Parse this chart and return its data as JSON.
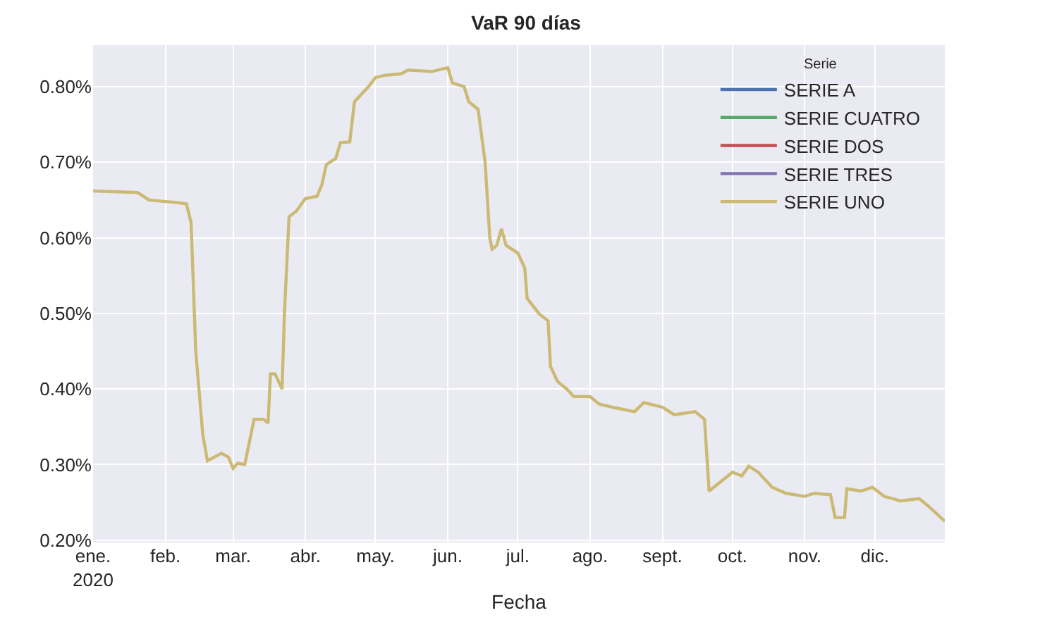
{
  "chart_data": {
    "type": "line",
    "title": "VaR 90 días",
    "xlabel": "Fecha",
    "legend_title": "Serie",
    "legend": "top right",
    "grid": true,
    "x": [
      "2020-01-01",
      "2020-01-20",
      "2020-01-25",
      "2020-02-01",
      "2020-02-05",
      "2020-02-10",
      "2020-02-12",
      "2020-02-14",
      "2020-02-17",
      "2020-02-19",
      "2020-02-25",
      "2020-02-28",
      "2020-03-01",
      "2020-03-03",
      "2020-03-06",
      "2020-03-08",
      "2020-03-10",
      "2020-03-14",
      "2020-03-16",
      "2020-03-17",
      "2020-03-19",
      "2020-03-22",
      "2020-03-23",
      "2020-03-25",
      "2020-03-28",
      "2020-04-01",
      "2020-04-06",
      "2020-04-08",
      "2020-04-10",
      "2020-04-14",
      "2020-04-16",
      "2020-04-20",
      "2020-04-22",
      "2020-04-25",
      "2020-04-28",
      "2020-05-01",
      "2020-05-05",
      "2020-05-12",
      "2020-05-15",
      "2020-05-25",
      "2020-06-01",
      "2020-06-03",
      "2020-06-08",
      "2020-06-10",
      "2020-06-14",
      "2020-06-17",
      "2020-06-19",
      "2020-06-20",
      "2020-06-22",
      "2020-06-24",
      "2020-06-26",
      "2020-07-01",
      "2020-07-04",
      "2020-07-05",
      "2020-07-10",
      "2020-07-14",
      "2020-07-15",
      "2020-07-18",
      "2020-07-22",
      "2020-07-25",
      "2020-08-01",
      "2020-08-05",
      "2020-08-12",
      "2020-08-20",
      "2020-08-24",
      "2020-09-01",
      "2020-09-06",
      "2020-09-15",
      "2020-09-19",
      "2020-09-21",
      "2020-09-25",
      "2020-10-01",
      "2020-10-05",
      "2020-10-08",
      "2020-10-12",
      "2020-10-18",
      "2020-10-24",
      "2020-11-01",
      "2020-11-05",
      "2020-11-12",
      "2020-11-14",
      "2020-11-18",
      "2020-11-19",
      "2020-11-25",
      "2020-11-30",
      "2020-12-05",
      "2020-12-12",
      "2020-12-20",
      "2020-12-24",
      "2020-12-31"
    ],
    "xlim": [
      "2020-01-01",
      "2020-12-31"
    ],
    "xticks": [
      {
        "value": "2020-01-01",
        "label": "ene.\n2020"
      },
      {
        "value": "2020-02-01",
        "label": "feb."
      },
      {
        "value": "2020-03-01",
        "label": "mar."
      },
      {
        "value": "2020-04-01",
        "label": "abr."
      },
      {
        "value": "2020-05-01",
        "label": "may."
      },
      {
        "value": "2020-06-01",
        "label": "jun."
      },
      {
        "value": "2020-07-01",
        "label": "jul."
      },
      {
        "value": "2020-08-01",
        "label": "ago."
      },
      {
        "value": "2020-09-01",
        "label": "sept."
      },
      {
        "value": "2020-10-01",
        "label": "oct."
      },
      {
        "value": "2020-11-01",
        "label": "nov."
      },
      {
        "value": "2020-12-01",
        "label": "dic."
      }
    ],
    "ylim": [
      0.197,
      0.855
    ],
    "yticks": [
      {
        "value": 0.2,
        "label": "0.20%"
      },
      {
        "value": 0.3,
        "label": "0.30%"
      },
      {
        "value": 0.4,
        "label": "0.40%"
      },
      {
        "value": 0.5,
        "label": "0.50%"
      },
      {
        "value": 0.6,
        "label": "0.60%"
      },
      {
        "value": 0.7,
        "label": "0.70%"
      },
      {
        "value": 0.8,
        "label": "0.80%"
      }
    ],
    "series": [
      {
        "name": "SERIE A",
        "color": "#4c72b0",
        "values": [
          null,
          null,
          null,
          null,
          null,
          null,
          null,
          null,
          null,
          null,
          null,
          null,
          null,
          null,
          null,
          null,
          null,
          null,
          null,
          null,
          null,
          null,
          null,
          null,
          null,
          null,
          null,
          null,
          null,
          null,
          null,
          null,
          null,
          null,
          null,
          null,
          null,
          null,
          null,
          null,
          null,
          null,
          null,
          null,
          null,
          null,
          null,
          null,
          null,
          null,
          null,
          null,
          null,
          null,
          null,
          null,
          null,
          null,
          null,
          null,
          null,
          null,
          null,
          null,
          null,
          null,
          null,
          null,
          null,
          null,
          null,
          null,
          null,
          null,
          null,
          null,
          null,
          null,
          null,
          null,
          null,
          null,
          null,
          null,
          null,
          null,
          null,
          null,
          null,
          null
        ]
      },
      {
        "name": "SERIE CUATRO",
        "color": "#55a868",
        "values": [
          null,
          null,
          null,
          null,
          null,
          null,
          null,
          null,
          null,
          null,
          null,
          null,
          null,
          null,
          null,
          null,
          null,
          null,
          null,
          null,
          null,
          null,
          null,
          null,
          null,
          null,
          null,
          null,
          null,
          null,
          null,
          null,
          null,
          null,
          null,
          null,
          null,
          null,
          null,
          null,
          null,
          null,
          null,
          null,
          null,
          null,
          null,
          null,
          null,
          null,
          null,
          null,
          null,
          null,
          null,
          null,
          null,
          null,
          null,
          null,
          null,
          null,
          null,
          null,
          null,
          null,
          null,
          null,
          null,
          null,
          null,
          null,
          null,
          null,
          null,
          null,
          null,
          null,
          null,
          null,
          null,
          null,
          null,
          null,
          null,
          null,
          null,
          null,
          null,
          null
        ]
      },
      {
        "name": "SERIE DOS",
        "color": "#c44e52",
        "values": [
          null,
          null,
          null,
          null,
          null,
          null,
          null,
          null,
          null,
          null,
          null,
          null,
          null,
          null,
          null,
          null,
          null,
          null,
          null,
          null,
          null,
          null,
          null,
          null,
          null,
          null,
          null,
          null,
          null,
          null,
          null,
          null,
          null,
          null,
          null,
          null,
          null,
          null,
          null,
          null,
          null,
          null,
          null,
          null,
          null,
          null,
          null,
          null,
          null,
          null,
          null,
          null,
          null,
          null,
          null,
          null,
          null,
          null,
          null,
          null,
          null,
          null,
          null,
          null,
          null,
          null,
          null,
          null,
          null,
          null,
          null,
          null,
          null,
          null,
          null,
          null,
          null,
          null,
          null,
          null,
          null,
          null,
          null,
          null,
          null,
          null,
          null,
          null,
          null,
          null
        ]
      },
      {
        "name": "SERIE TRES",
        "color": "#8172b2",
        "values": [
          null,
          null,
          null,
          null,
          null,
          null,
          null,
          null,
          null,
          null,
          null,
          null,
          null,
          null,
          null,
          null,
          null,
          null,
          null,
          null,
          null,
          null,
          null,
          null,
          null,
          null,
          null,
          null,
          null,
          null,
          null,
          null,
          null,
          null,
          null,
          null,
          null,
          null,
          null,
          null,
          null,
          null,
          null,
          null,
          null,
          null,
          null,
          null,
          null,
          null,
          null,
          null,
          null,
          null,
          null,
          null,
          null,
          null,
          null,
          null,
          null,
          null,
          null,
          null,
          null,
          null,
          null,
          null,
          null,
          null,
          null,
          null,
          null,
          null,
          null,
          null,
          null,
          null,
          null,
          null,
          null,
          null,
          null,
          null,
          null,
          null,
          null,
          null,
          null,
          null
        ]
      },
      {
        "name": "SERIE UNO",
        "color": "#ccb974",
        "values": [
          0.662,
          0.66,
          0.65,
          0.648,
          0.647,
          0.645,
          0.62,
          0.45,
          0.34,
          0.305,
          0.315,
          0.31,
          0.295,
          0.302,
          0.3,
          0.33,
          0.36,
          0.36,
          0.355,
          0.42,
          0.42,
          0.4,
          0.5,
          0.628,
          0.635,
          0.652,
          0.655,
          0.67,
          0.697,
          0.705,
          0.726,
          0.727,
          0.78,
          0.79,
          0.8,
          0.812,
          0.815,
          0.817,
          0.822,
          0.82,
          0.825,
          0.805,
          0.8,
          0.78,
          0.77,
          0.7,
          0.6,
          0.585,
          0.59,
          0.612,
          0.59,
          0.58,
          0.56,
          0.52,
          0.5,
          0.49,
          0.43,
          0.41,
          0.4,
          0.39,
          0.39,
          0.38,
          0.375,
          0.37,
          0.382,
          0.376,
          0.366,
          0.37,
          0.36,
          0.265,
          0.275,
          0.29,
          0.285,
          0.298,
          0.29,
          0.27,
          0.262,
          0.258,
          0.262,
          0.26,
          0.23,
          0.23,
          0.268,
          0.265,
          0.27,
          0.258,
          0.252,
          0.255,
          0.245,
          0.225
        ]
      }
    ]
  }
}
